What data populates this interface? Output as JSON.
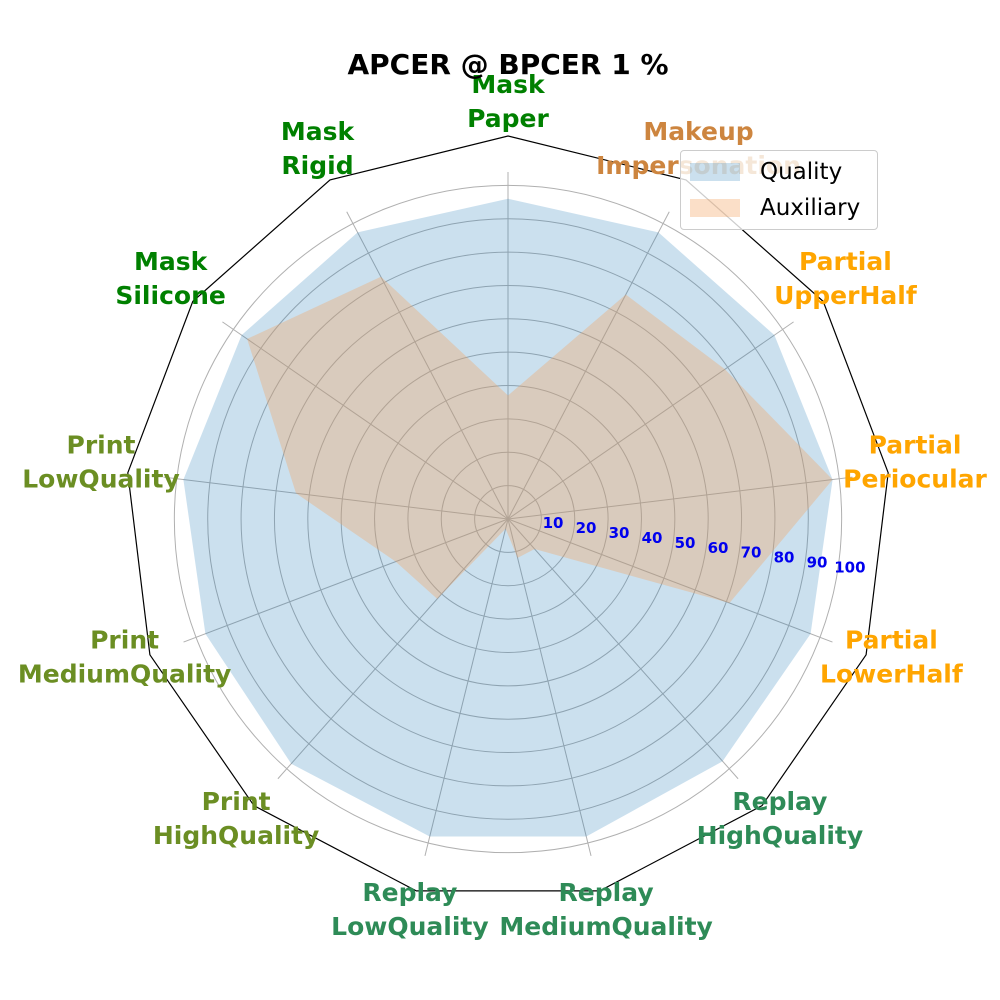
{
  "chart_data": {
    "type": "radar",
    "title": "APCER @ BPCER 1 %",
    "categories": [
      {
        "label": [
          "Mask",
          "Paper"
        ],
        "color": "#008000"
      },
      {
        "label": [
          "Makeup",
          "Impersonation"
        ],
        "color": "#cd853f"
      },
      {
        "label": [
          "Partial",
          "UpperHalf"
        ],
        "color": "#ffa500"
      },
      {
        "label": [
          "Partial",
          "Periocular"
        ],
        "color": "#ffa500"
      },
      {
        "label": [
          "Partial",
          "LowerHalf"
        ],
        "color": "#ffa500"
      },
      {
        "label": [
          "Replay",
          "HighQuality"
        ],
        "color": "#2e8b57"
      },
      {
        "label": [
          "Replay",
          "MediumQuality"
        ],
        "color": "#2e8b57"
      },
      {
        "label": [
          "Replay",
          "LowQuality"
        ],
        "color": "#2e8b57"
      },
      {
        "label": [
          "Print",
          "HighQuality"
        ],
        "color": "#6b8e23"
      },
      {
        "label": [
          "Print",
          "MediumQuality"
        ],
        "color": "#6b8e23"
      },
      {
        "label": [
          "Print",
          "LowQuality"
        ],
        "color": "#6b8e23"
      },
      {
        "label": [
          "Mask",
          "Silicone"
        ],
        "color": "#008000"
      },
      {
        "label": [
          "Mask",
          "Rigid"
        ],
        "color": "#008000"
      }
    ],
    "series": [
      {
        "name": "Quality",
        "color": "#1f77b4",
        "opacity": 0.23,
        "values": [
          96,
          97,
          97,
          98,
          97,
          97,
          98,
          98,
          98,
          97,
          98,
          97,
          97
        ]
      },
      {
        "name": "Auxiliary",
        "color": "#f4a460",
        "opacity": 0.35,
        "values": [
          37,
          76,
          79,
          98,
          71,
          12,
          12,
          3,
          32,
          36,
          64,
          95,
          82
        ]
      }
    ],
    "rlim": [
      0,
      104
    ],
    "rticks": [
      10,
      20,
      30,
      40,
      50,
      60,
      70,
      80,
      90,
      100
    ],
    "tick_color": "#0000ee",
    "grid": true,
    "legend_position": "top-right"
  }
}
